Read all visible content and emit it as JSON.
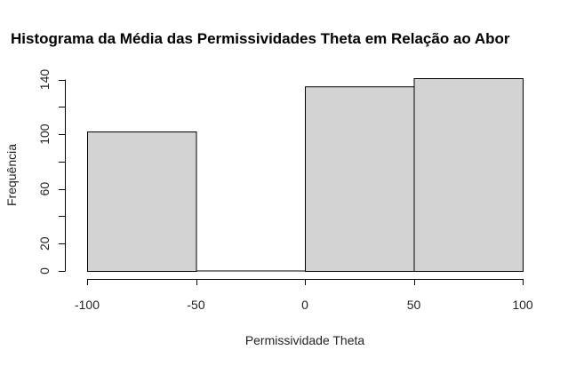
{
  "chart_data": {
    "type": "bar",
    "subtype": "histogram",
    "title": "Histograma da Média das Permissividades Theta em Relação ao Abor",
    "xlabel": "Permissividade Theta",
    "ylabel": "Frequência",
    "bins": [
      {
        "from": -100,
        "to": -50,
        "count": 102
      },
      {
        "from": -50,
        "to": 0,
        "count": 0
      },
      {
        "from": 0,
        "to": 50,
        "count": 135
      },
      {
        "from": 50,
        "to": 100,
        "count": 141
      }
    ],
    "xlim": [
      -100,
      100
    ],
    "ylim": [
      0,
      141
    ],
    "xticks": [
      -100,
      -50,
      0,
      50,
      100
    ],
    "yticks": [
      0,
      20,
      60,
      100,
      140
    ],
    "ytick_marks": [
      0,
      20,
      40,
      60,
      80,
      100,
      120,
      140
    ],
    "bar_fill": "#d3d3d3",
    "bar_stroke": "#000000",
    "grid": false,
    "legend": "none"
  }
}
